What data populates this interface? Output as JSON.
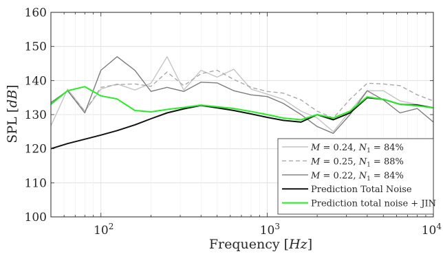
{
  "chart_data": {
    "type": "line",
    "xlabel": "Frequency",
    "xlabel_unit": "Hz",
    "ylabel": "SPL",
    "ylabel_unit": "dB",
    "xscale": "log",
    "xlim": [
      50,
      10000
    ],
    "ylim": [
      100,
      160
    ],
    "grid": true,
    "legend_position": "bottom-right",
    "y_ticks": [
      100,
      110,
      120,
      130,
      140,
      150,
      160
    ],
    "x_tick_labels": [
      {
        "base": "10",
        "exp": "2",
        "value": 100
      },
      {
        "base": "10",
        "exp": "3",
        "value": 1000
      },
      {
        "base": "10",
        "exp": "4",
        "value": 10000
      }
    ],
    "series": [
      {
        "name": "M = 0.24, N1 = 84%",
        "legend_parts": {
          "a": "M",
          "b": " = 0.24, ",
          "c": "N",
          "d": "1",
          "e": " = 84%"
        },
        "color": "#c4c4c4",
        "dash": "solid",
        "width": 1.4,
        "x": [
          50,
          63,
          80,
          100,
          125,
          160,
          200,
          250,
          315,
          400,
          500,
          630,
          800,
          1000,
          1250,
          1600,
          2000,
          2500,
          3150,
          4000,
          5000,
          6300,
          8000,
          10000
        ],
        "y": [
          126.7,
          137.5,
          131.0,
          137.5,
          139.0,
          137.2,
          139.2,
          147.0,
          137.2,
          143.0,
          141.0,
          143.3,
          137.5,
          136.0,
          134.5,
          131.0,
          129.0,
          125.0,
          131.0,
          137.0,
          137.0,
          134.0,
          133.0,
          132.0
        ]
      },
      {
        "name": "M = 0.25, N1 = 88%",
        "legend_parts": {
          "a": "M",
          "b": " = 0.25, ",
          "c": "N",
          "d": "1",
          "e": " = 88%"
        },
        "color": "#a8a8a8",
        "dash": "6,4",
        "width": 1.4,
        "x": [
          50,
          63,
          80,
          100,
          125,
          160,
          200,
          250,
          315,
          400,
          500,
          630,
          800,
          1000,
          1250,
          1600,
          2000,
          2500,
          3150,
          4000,
          5000,
          6300,
          8000,
          10000
        ],
        "y": [
          133.5,
          137.0,
          131.0,
          138.0,
          138.8,
          139.0,
          138.3,
          142.5,
          138.5,
          142.0,
          143.0,
          140.3,
          138.0,
          136.8,
          136.3,
          134.3,
          131.0,
          129.0,
          134.5,
          139.2,
          139.0,
          138.5,
          135.8,
          134.0
        ]
      },
      {
        "name": "M = 0.22, N1 = 84%",
        "legend_parts": {
          "a": "M",
          "b": " = 0.22, ",
          "c": "N",
          "d": "1",
          "e": " = 84%"
        },
        "color": "#7b7b7b",
        "dash": "solid",
        "width": 1.4,
        "x": [
          50,
          63,
          80,
          100,
          125,
          160,
          200,
          250,
          315,
          400,
          500,
          630,
          800,
          1000,
          1250,
          1600,
          2000,
          2500,
          3150,
          4000,
          5000,
          6300,
          8000,
          10000
        ],
        "y": [
          133.5,
          137.0,
          130.5,
          143.0,
          147.0,
          143.0,
          136.8,
          138.0,
          136.8,
          139.5,
          139.3,
          137.0,
          135.8,
          135.3,
          133.3,
          130.0,
          126.5,
          124.5,
          130.0,
          137.0,
          134.3,
          130.5,
          131.8,
          127.8
        ]
      },
      {
        "name": "Prediction Total Noise",
        "color": "#111111",
        "dash": "solid",
        "width": 2.0,
        "x": [
          50,
          63,
          80,
          100,
          125,
          160,
          200,
          250,
          315,
          400,
          500,
          630,
          800,
          1000,
          1250,
          1600,
          2000,
          2500,
          3150,
          4000,
          5000,
          6300,
          8000,
          10000
        ],
        "y": [
          120.0,
          121.5,
          122.8,
          124.0,
          125.3,
          127.0,
          128.8,
          130.5,
          131.7,
          132.7,
          132.0,
          131.2,
          130.2,
          129.2,
          128.3,
          127.8,
          130.0,
          128.5,
          130.5,
          135.0,
          134.5,
          133.0,
          132.8,
          132.0
        ]
      },
      {
        "name": "Prediction total noise + JIN",
        "color": "#22ee22",
        "dash": "solid",
        "width": 2.0,
        "x": [
          50,
          63,
          80,
          100,
          125,
          160,
          200,
          250,
          315,
          400,
          500,
          630,
          800,
          1000,
          1250,
          1600,
          2000,
          2500,
          3150,
          4000,
          5000,
          6300,
          8000,
          10000
        ],
        "y": [
          133.0,
          137.0,
          138.2,
          135.5,
          134.6,
          131.2,
          130.8,
          131.5,
          132.1,
          132.8,
          132.3,
          131.8,
          130.9,
          130.0,
          129.0,
          128.5,
          130.0,
          129.0,
          131.0,
          135.2,
          134.5,
          133.0,
          132.6,
          132.0
        ]
      }
    ]
  }
}
